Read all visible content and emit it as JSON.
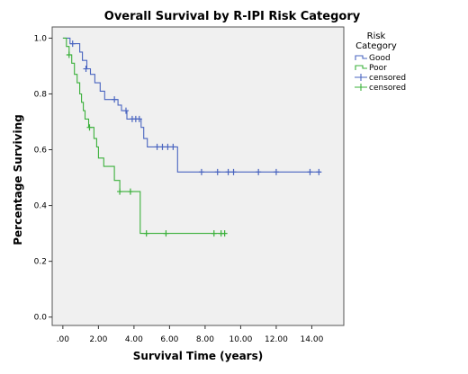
{
  "chart_data": {
    "type": "line",
    "title": "Overall Survival by R-IPI Risk Category",
    "xlabel": "Survival Time (years)",
    "ylabel": "Percentage Surviving",
    "xlim": [
      -0.6,
      15.8
    ],
    "ylim": [
      -0.03,
      1.04
    ],
    "x_ticks": [
      0,
      2,
      4,
      6,
      8,
      10,
      12,
      14
    ],
    "x_tick_labels": [
      ".00",
      "2.00",
      "4.00",
      "6.00",
      "8.00",
      "10.00",
      "12.00",
      "14.00"
    ],
    "y_ticks": [
      0,
      0.2,
      0.4,
      0.6,
      0.8,
      1.0
    ],
    "y_tick_labels": [
      "0.0",
      "0.2",
      "0.4",
      "0.6",
      "0.8",
      "1.0"
    ],
    "grid": false,
    "legend_title": "Risk Category",
    "legend_position": "right-outside",
    "series": [
      {
        "name": "Good",
        "color": "#4a65c0",
        "step": [
          [
            0,
            1.0
          ],
          [
            0.4,
            0.98
          ],
          [
            0.95,
            0.95
          ],
          [
            1.1,
            0.92
          ],
          [
            1.35,
            0.89
          ],
          [
            1.55,
            0.87
          ],
          [
            1.8,
            0.84
          ],
          [
            2.1,
            0.81
          ],
          [
            2.35,
            0.78
          ],
          [
            3.1,
            0.76
          ],
          [
            3.3,
            0.74
          ],
          [
            3.6,
            0.71
          ],
          [
            4.4,
            0.68
          ],
          [
            4.55,
            0.64
          ],
          [
            4.75,
            0.61
          ],
          [
            6.45,
            0.52
          ],
          [
            14.5,
            0.52
          ]
        ],
        "censored": [
          [
            0.55,
            0.98
          ],
          [
            1.3,
            0.89
          ],
          [
            2.9,
            0.78
          ],
          [
            3.55,
            0.74
          ],
          [
            3.9,
            0.71
          ],
          [
            4.1,
            0.71
          ],
          [
            4.3,
            0.71
          ],
          [
            5.3,
            0.61
          ],
          [
            5.6,
            0.61
          ],
          [
            5.9,
            0.61
          ],
          [
            6.2,
            0.61
          ],
          [
            7.8,
            0.52
          ],
          [
            8.7,
            0.52
          ],
          [
            9.3,
            0.52
          ],
          [
            9.6,
            0.52
          ],
          [
            11.0,
            0.52
          ],
          [
            12.0,
            0.52
          ],
          [
            13.9,
            0.52
          ],
          [
            14.4,
            0.52
          ]
        ]
      },
      {
        "name": "Poor",
        "color": "#3ab03a",
        "step": [
          [
            0,
            1.0
          ],
          [
            0.2,
            0.97
          ],
          [
            0.35,
            0.94
          ],
          [
            0.5,
            0.91
          ],
          [
            0.65,
            0.87
          ],
          [
            0.8,
            0.84
          ],
          [
            0.95,
            0.8
          ],
          [
            1.05,
            0.77
          ],
          [
            1.15,
            0.74
          ],
          [
            1.25,
            0.71
          ],
          [
            1.45,
            0.68
          ],
          [
            1.75,
            0.64
          ],
          [
            1.9,
            0.61
          ],
          [
            2.0,
            0.57
          ],
          [
            2.3,
            0.54
          ],
          [
            2.9,
            0.49
          ],
          [
            3.2,
            0.45
          ],
          [
            4.35,
            0.3
          ],
          [
            9.1,
            0.3
          ]
        ],
        "censored": [
          [
            0.35,
            0.94
          ],
          [
            1.5,
            0.68
          ],
          [
            3.2,
            0.45
          ],
          [
            3.8,
            0.45
          ],
          [
            4.7,
            0.3
          ],
          [
            5.8,
            0.3
          ],
          [
            8.5,
            0.3
          ],
          [
            8.9,
            0.3
          ],
          [
            9.1,
            0.3
          ]
        ]
      }
    ],
    "legend": [
      {
        "label": "Good",
        "kind": "line",
        "color": "#4a65c0"
      },
      {
        "label": "Poor",
        "kind": "line",
        "color": "#3ab03a"
      },
      {
        "label": "censored",
        "kind": "censor",
        "color": "#4a65c0"
      },
      {
        "label": "censored",
        "kind": "censor",
        "color": "#3ab03a"
      }
    ]
  }
}
